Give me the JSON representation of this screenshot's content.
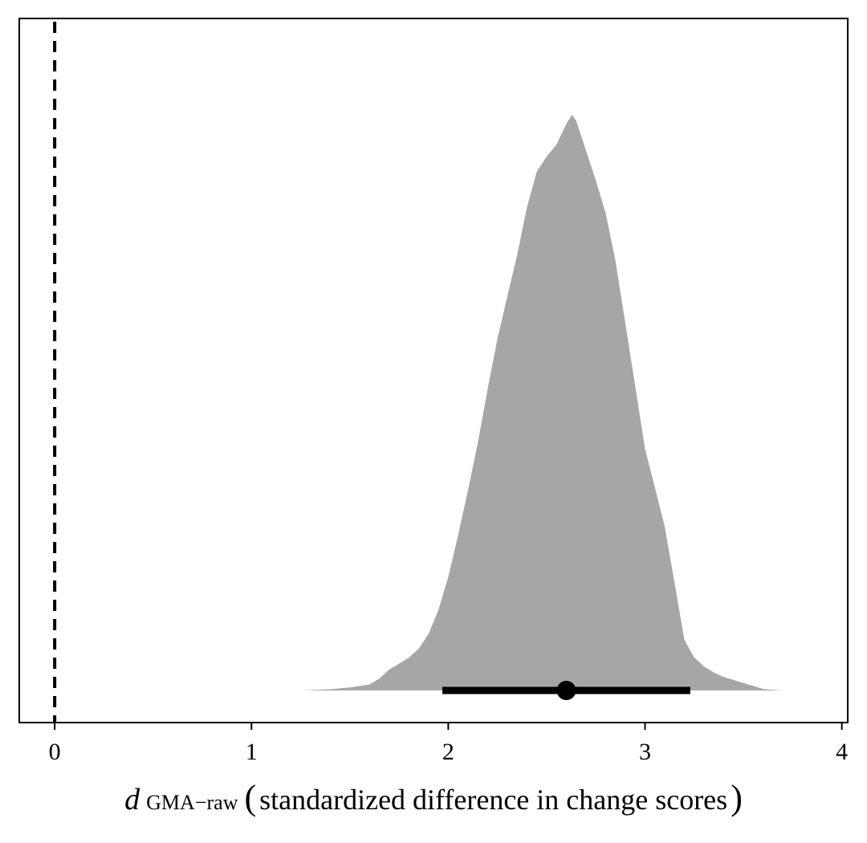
{
  "chart_data": {
    "type": "density",
    "title": "",
    "xlabel": {
      "symbol": "d",
      "subscript": "GMA−raw",
      "open_paren": "(",
      "text": "standardized difference in change scores",
      "close_paren": ")"
    },
    "ylabel": "",
    "xlim": [
      -0.18,
      4.03
    ],
    "x_ticks": [
      0,
      1,
      2,
      3,
      4
    ],
    "x_tick_labels": [
      "0",
      "1",
      "2",
      "3",
      "4"
    ],
    "reference_line": {
      "x": 0,
      "style": "dashed",
      "color": "#000000"
    },
    "fill_color": "#a6a6a6",
    "density": {
      "x": [
        1.25,
        1.4,
        1.5,
        1.6,
        1.65,
        1.7,
        1.75,
        1.8,
        1.85,
        1.9,
        1.95,
        2.0,
        2.05,
        2.1,
        2.15,
        2.2,
        2.25,
        2.3,
        2.35,
        2.4,
        2.45,
        2.5,
        2.55,
        2.6,
        2.63,
        2.65,
        2.7,
        2.75,
        2.8,
        2.85,
        2.9,
        2.95,
        3.0,
        3.05,
        3.1,
        3.15,
        3.2,
        3.25,
        3.3,
        3.35,
        3.4,
        3.45,
        3.5,
        3.55,
        3.6,
        3.65,
        3.7,
        3.84
      ],
      "y": [
        0.0,
        0.004,
        0.01,
        0.02,
        0.04,
        0.07,
        0.09,
        0.11,
        0.14,
        0.19,
        0.27,
        0.38,
        0.52,
        0.67,
        0.83,
        1.01,
        1.18,
        1.32,
        1.46,
        1.62,
        1.74,
        1.79,
        1.83,
        1.9,
        1.93,
        1.91,
        1.81,
        1.71,
        1.6,
        1.44,
        1.23,
        1.02,
        0.81,
        0.68,
        0.55,
        0.36,
        0.17,
        0.11,
        0.08,
        0.06,
        0.045,
        0.035,
        0.025,
        0.015,
        0.005,
        0.002,
        0.0,
        0.0
      ]
    },
    "point_estimate": 2.6,
    "interval": [
      1.97,
      3.23
    ]
  }
}
